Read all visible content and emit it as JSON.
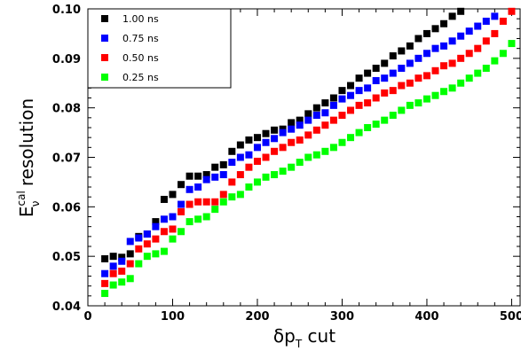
{
  "chart_data": {
    "type": "scatter",
    "xlabel": {
      "base": "δp",
      "sub": "T",
      "rest": " cut"
    },
    "ylabel": {
      "base": "E",
      "sup": "cal",
      "sub": "ν",
      "rest": " resolution"
    },
    "xlim": [
      0,
      510
    ],
    "ylim": [
      0.04,
      0.1
    ],
    "xticks": [
      0,
      100,
      200,
      300,
      400,
      500
    ],
    "yticks": [
      0.04,
      0.05,
      0.06,
      0.07,
      0.08,
      0.09,
      0.1
    ],
    "ytick_labels": [
      "0.04",
      "0.05",
      "0.06",
      "0.07",
      "0.08",
      "0.09",
      "0.10"
    ],
    "legend_position": "top-left",
    "grid": false,
    "series": [
      {
        "name": "1.00 ns",
        "color": "#000000",
        "x": [
          20,
          30,
          40,
          50,
          60,
          70,
          80,
          90,
          100,
          110,
          120,
          130,
          140,
          150,
          160,
          170,
          180,
          190,
          200,
          210,
          220,
          230,
          240,
          250,
          260,
          270,
          280,
          290,
          300,
          310,
          320,
          330,
          340,
          350,
          360,
          370,
          380,
          390,
          400,
          410,
          420,
          430,
          440
        ],
        "y": [
          0.0495,
          0.05,
          0.0498,
          0.0505,
          0.054,
          0.0545,
          0.057,
          0.0615,
          0.0625,
          0.0645,
          0.0662,
          0.0662,
          0.0665,
          0.068,
          0.0685,
          0.0712,
          0.0725,
          0.0735,
          0.074,
          0.0748,
          0.0755,
          0.0757,
          0.077,
          0.0775,
          0.0788,
          0.08,
          0.081,
          0.082,
          0.0835,
          0.0845,
          0.086,
          0.087,
          0.088,
          0.089,
          0.0905,
          0.0915,
          0.0925,
          0.094,
          0.095,
          0.096,
          0.097,
          0.0985,
          0.0995
        ]
      },
      {
        "name": "0.75 ns",
        "color": "#0000ff",
        "x": [
          20,
          30,
          40,
          50,
          60,
          70,
          80,
          90,
          100,
          110,
          120,
          130,
          140,
          150,
          160,
          170,
          180,
          190,
          200,
          210,
          220,
          230,
          240,
          250,
          260,
          270,
          280,
          290,
          300,
          310,
          320,
          330,
          340,
          350,
          360,
          370,
          380,
          390,
          400,
          410,
          420,
          430,
          440,
          450,
          460,
          470,
          480
        ],
        "y": [
          0.0465,
          0.048,
          0.049,
          0.053,
          0.0537,
          0.0545,
          0.056,
          0.0575,
          0.058,
          0.0605,
          0.0635,
          0.064,
          0.0655,
          0.066,
          0.0665,
          0.069,
          0.07,
          0.0705,
          0.072,
          0.073,
          0.0738,
          0.075,
          0.0757,
          0.0765,
          0.0775,
          0.0785,
          0.079,
          0.0805,
          0.0818,
          0.0825,
          0.0835,
          0.084,
          0.0855,
          0.086,
          0.087,
          0.088,
          0.089,
          0.09,
          0.091,
          0.092,
          0.0925,
          0.0935,
          0.0945,
          0.0955,
          0.0965,
          0.0975,
          0.0985
        ]
      },
      {
        "name": "0.50 ns",
        "color": "#ff0000",
        "x": [
          20,
          30,
          40,
          50,
          60,
          70,
          80,
          90,
          100,
          110,
          120,
          130,
          140,
          150,
          160,
          170,
          180,
          190,
          200,
          210,
          220,
          230,
          240,
          250,
          260,
          270,
          280,
          290,
          300,
          310,
          320,
          330,
          340,
          350,
          360,
          370,
          380,
          390,
          400,
          410,
          420,
          430,
          440,
          450,
          460,
          470,
          480,
          490,
          500
        ],
        "y": [
          0.0445,
          0.0465,
          0.047,
          0.0485,
          0.0515,
          0.0525,
          0.0535,
          0.055,
          0.0555,
          0.059,
          0.0605,
          0.061,
          0.061,
          0.061,
          0.0625,
          0.065,
          0.0665,
          0.068,
          0.0692,
          0.07,
          0.0712,
          0.072,
          0.073,
          0.0735,
          0.0745,
          0.0755,
          0.0765,
          0.0775,
          0.0785,
          0.0795,
          0.0805,
          0.081,
          0.082,
          0.083,
          0.0835,
          0.0845,
          0.085,
          0.086,
          0.0865,
          0.0875,
          0.0885,
          0.089,
          0.09,
          0.091,
          0.092,
          0.0935,
          0.095,
          0.0975,
          0.0995
        ]
      },
      {
        "name": "0.25 ns",
        "color": "#00ff00",
        "x": [
          20,
          30,
          40,
          50,
          60,
          70,
          80,
          90,
          100,
          110,
          120,
          130,
          140,
          150,
          160,
          170,
          180,
          190,
          200,
          210,
          220,
          230,
          240,
          250,
          260,
          270,
          280,
          290,
          300,
          310,
          320,
          330,
          340,
          350,
          360,
          370,
          380,
          390,
          400,
          410,
          420,
          430,
          440,
          450,
          460,
          470,
          480,
          490,
          500
        ],
        "y": [
          0.0425,
          0.0442,
          0.0448,
          0.0455,
          0.0485,
          0.05,
          0.0505,
          0.051,
          0.0535,
          0.055,
          0.057,
          0.0575,
          0.058,
          0.0595,
          0.061,
          0.062,
          0.0625,
          0.064,
          0.065,
          0.066,
          0.0665,
          0.0672,
          0.068,
          0.069,
          0.07,
          0.0705,
          0.0712,
          0.072,
          0.073,
          0.074,
          0.075,
          0.076,
          0.0767,
          0.0775,
          0.0785,
          0.0795,
          0.0805,
          0.081,
          0.0818,
          0.0825,
          0.0833,
          0.084,
          0.085,
          0.086,
          0.087,
          0.088,
          0.0895,
          0.091,
          0.093
        ]
      }
    ]
  }
}
